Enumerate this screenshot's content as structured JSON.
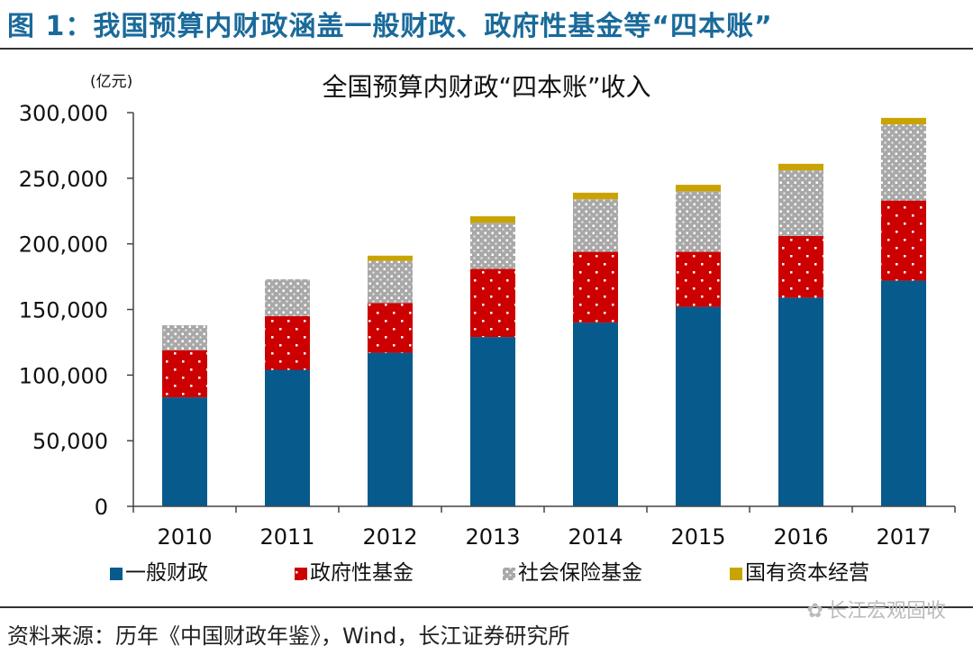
{
  "figure_title": "图 1：我国预算内财政涵盖一般财政、政府性基金等“四本账”",
  "source": "资料来源：历年《中国财政年鉴》，Wind，长江证券研究所",
  "watermark": "长江宏观固收",
  "colors": {
    "title": "#1a6a9a",
    "general": "#075a8c",
    "gov_fund": "#cc0000",
    "social": "#a8a8a8",
    "soe": "#c9a400"
  },
  "chart_data": {
    "type": "bar",
    "stacked": true,
    "title": "全国预算内财政“四本账”收入",
    "unit": "(亿元)",
    "xlabel": "",
    "ylabel": "",
    "ylim": [
      0,
      300000
    ],
    "yticks": [
      0,
      50000,
      100000,
      150000,
      200000,
      250000,
      300000
    ],
    "ytick_labels": [
      "0",
      "50,000",
      "100,000",
      "150,000",
      "200,000",
      "250,000",
      "300,000"
    ],
    "grid": false,
    "legend": "bottom",
    "categories": [
      "2010",
      "2011",
      "2012",
      "2013",
      "2014",
      "2015",
      "2016",
      "2017"
    ],
    "series": [
      {
        "name": "一般财政",
        "color": "#075a8c",
        "pattern": "solid",
        "values": [
          83000,
          104000,
          117000,
          129000,
          140000,
          152000,
          159000,
          172000
        ]
      },
      {
        "name": "政府性基金",
        "color": "#cc0000",
        "pattern": "dots",
        "values": [
          36000,
          41000,
          38000,
          52000,
          54000,
          42000,
          47000,
          61000
        ]
      },
      {
        "name": "社会保险基金",
        "color": "#a8a8a8",
        "pattern": "dots",
        "values": [
          19000,
          28000,
          32000,
          35000,
          40000,
          46000,
          50000,
          58000
        ]
      },
      {
        "name": "国有资本经营",
        "color": "#c9a400",
        "pattern": "solid",
        "values": [
          0,
          0,
          4000,
          5000,
          5000,
          5000,
          5000,
          5000
        ]
      }
    ]
  }
}
